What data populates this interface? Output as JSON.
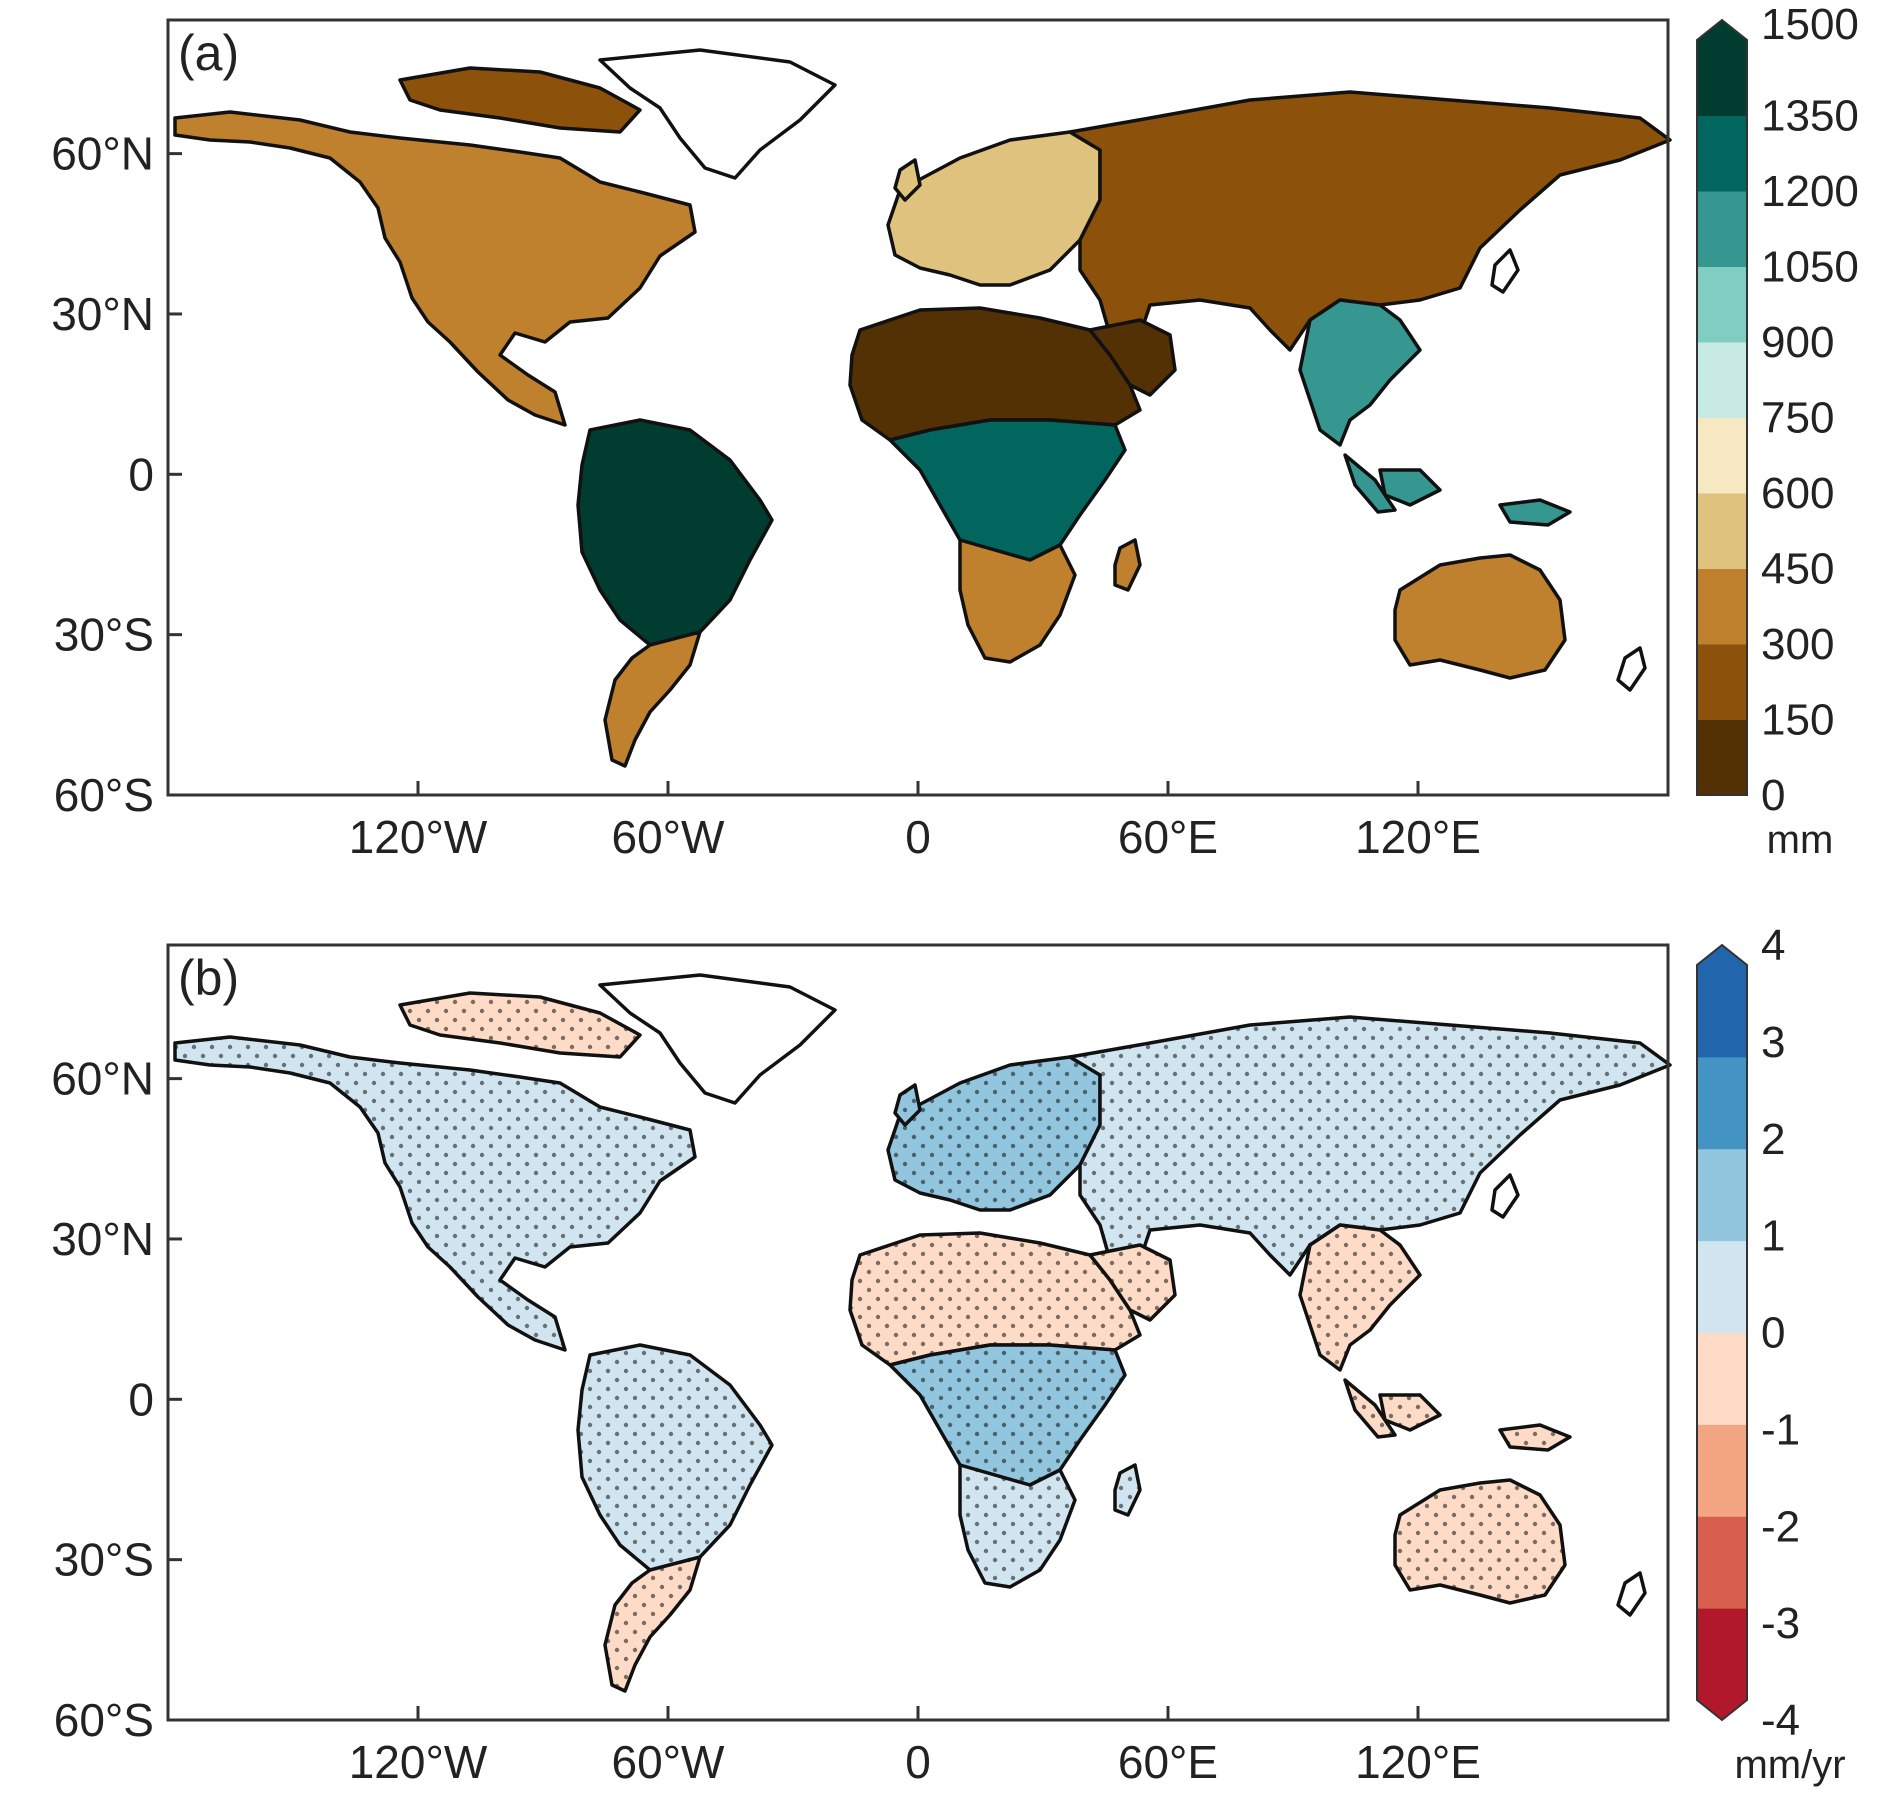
{
  "panels": [
    {
      "id": "a",
      "label": "(a)",
      "y_ticks": [
        "60°N",
        "30°N",
        "0",
        "30°S",
        "60°S"
      ],
      "x_ticks": [
        "120°W",
        "60°W",
        "0",
        "60°E",
        "120°E"
      ],
      "colorbar": {
        "ticks": [
          "1500",
          "1350",
          "1200",
          "1050",
          "900",
          "750",
          "600",
          "450",
          "300",
          "150",
          "0"
        ],
        "colors_bottom_to_top": [
          "#543005",
          "#8c510a",
          "#bf812d",
          "#dfc27d",
          "#f6e8c3",
          "#c7eae5",
          "#80cdc1",
          "#35978f",
          "#01665e",
          "#003c30"
        ],
        "extend": "max",
        "unit": "mm"
      },
      "land_colors": {
        "north_america": "#bf812d",
        "canada": "#8c510a",
        "south_america_amazon": "#003c30",
        "south_america_south": "#bf812d",
        "sahara": "#543005",
        "central_africa": "#01665e",
        "southern_africa": "#bf812d",
        "europe": "#dfc27d",
        "asia": "#8c510a",
        "se_asia": "#35978f",
        "australia": "#bf812d"
      }
    },
    {
      "id": "b",
      "label": "(b)",
      "y_ticks": [
        "60°N",
        "30°N",
        "0",
        "30°S",
        "60°S"
      ],
      "x_ticks": [
        "120°W",
        "60°W",
        "0",
        "60°E",
        "120°E"
      ],
      "colorbar": {
        "ticks": [
          "4",
          "3",
          "2",
          "1",
          "0",
          "-1",
          "-2",
          "-3",
          "-4"
        ],
        "colors_bottom_to_top": [
          "#b2182b",
          "#d6604d",
          "#f4a582",
          "#fddbc7",
          "#d1e5f0",
          "#92c5de",
          "#4393c3",
          "#2166ac"
        ],
        "extend": "both",
        "unit": "mm/yr"
      },
      "land_colors": {
        "north_america": "#d1e5f0",
        "canada": "#fddbc7",
        "south_america_amazon": "#d1e5f0",
        "south_america_south": "#fddbc7",
        "sahara": "#fddbc7",
        "central_africa": "#92c5de",
        "southern_africa": "#d1e5f0",
        "europe": "#92c5de",
        "asia": "#d1e5f0",
        "se_asia": "#fddbc7",
        "australia": "#fddbc7"
      }
    }
  ]
}
